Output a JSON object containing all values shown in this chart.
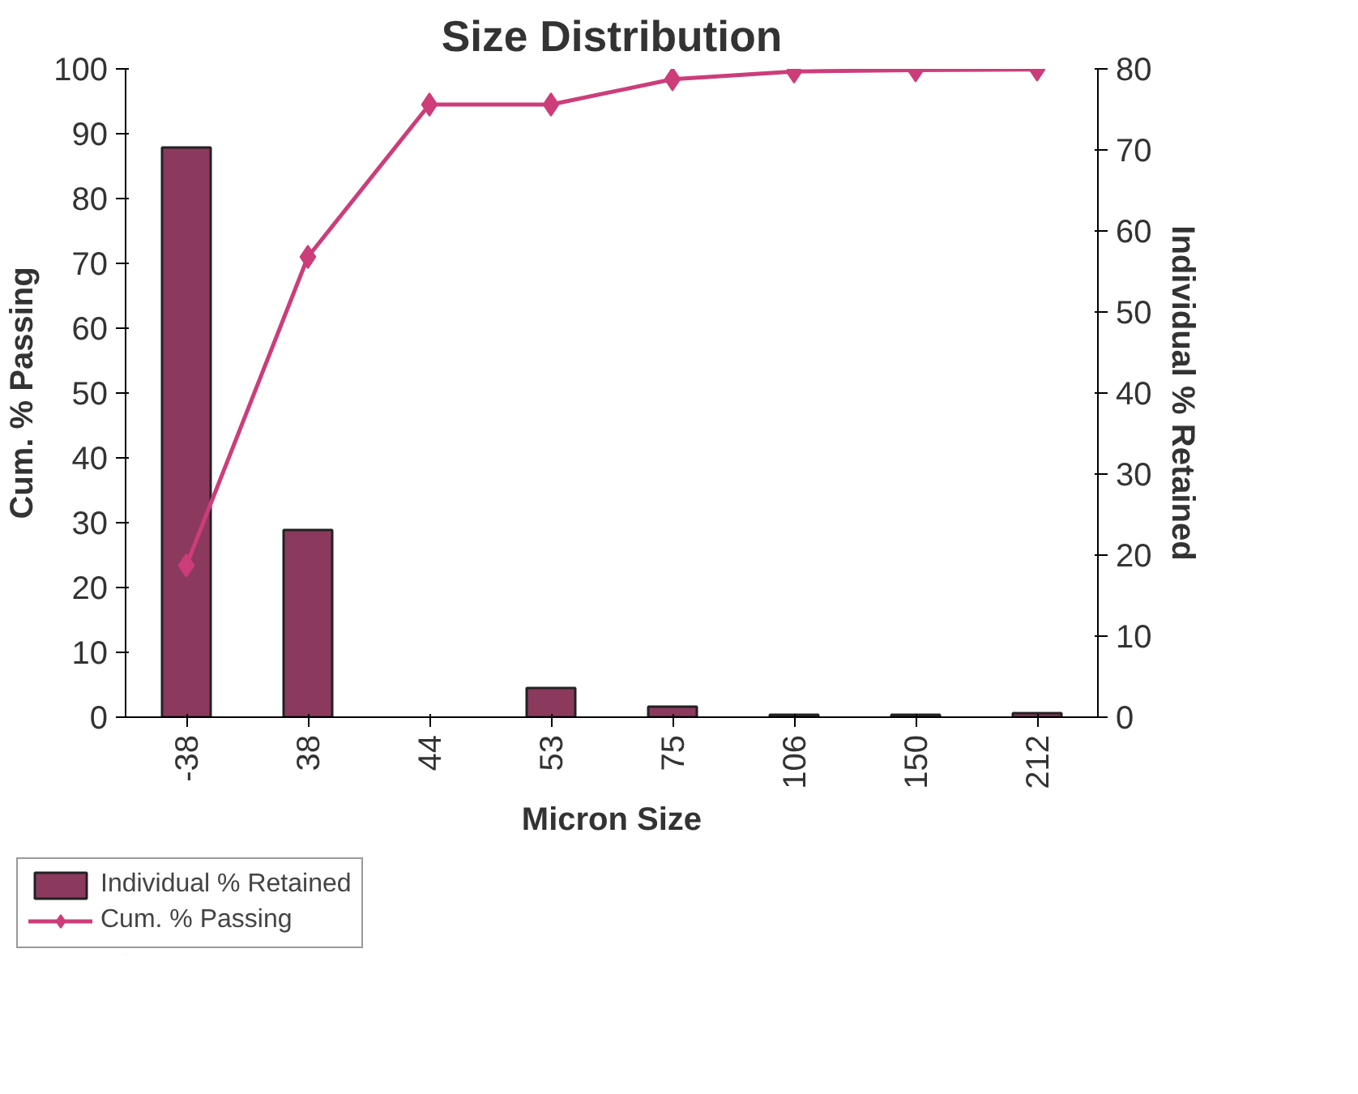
{
  "chart_data": {
    "type": "bar",
    "title": "Size Distribution",
    "xlabel": "Micron Size",
    "ylabel": "Cum. % Passing",
    "y2label": "Individual % Retained",
    "categories": [
      "-38",
      "38",
      "44",
      "53",
      "75",
      "106",
      "150",
      "212"
    ],
    "series": [
      {
        "name": "Individual % Retained",
        "axis": "y2",
        "color": "#8b3a5e",
        "values": [
          70.3,
          23.1,
          null,
          3.6,
          1.3,
          0.3,
          0.3,
          0.5
        ]
      },
      {
        "name": "Cum. % Passing",
        "type": "line",
        "color": "#cc3d7a",
        "marker": "diamond",
        "values": [
          23.4,
          71.0,
          94.5,
          94.5,
          98.4,
          99.6,
          99.8,
          99.9
        ]
      }
    ],
    "ylim": [
      0,
      100
    ],
    "yticks": [
      0,
      10,
      20,
      30,
      40,
      50,
      60,
      70,
      80,
      90,
      100
    ],
    "y2lim": [
      0,
      80
    ],
    "y2ticks": [
      0,
      10,
      20,
      30,
      40,
      50,
      60,
      70,
      80
    ],
    "grid": false,
    "legend": "bottom left"
  }
}
